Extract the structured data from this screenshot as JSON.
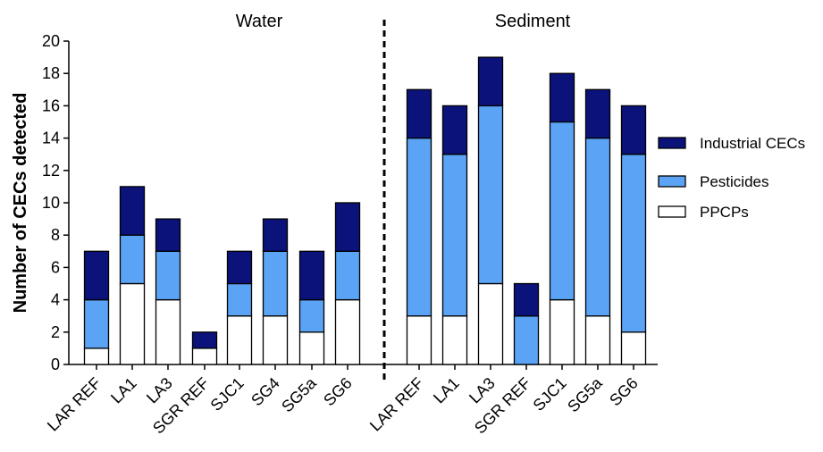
{
  "chart_data": {
    "type": "bar",
    "stacked": true,
    "ylabel": "Number of CECs detected",
    "ylim": [
      0,
      20
    ],
    "yticks": [
      0,
      2,
      4,
      6,
      8,
      10,
      12,
      14,
      16,
      18,
      20
    ],
    "grid": false,
    "legend_position": "right",
    "panels": [
      "Water",
      "Sediment"
    ],
    "categories": [
      "LAR REF",
      "LA1",
      "LA3",
      "SGR REF",
      "SJC1",
      "SG4",
      "SG5a",
      "SG6",
      "LAR REF",
      "LA1",
      "LA3",
      "SGR REF",
      "SJC1",
      "SG5a",
      "SG6"
    ],
    "panel_of_category": [
      "Water",
      "Water",
      "Water",
      "Water",
      "Water",
      "Water",
      "Water",
      "Water",
      "Sediment",
      "Sediment",
      "Sediment",
      "Sediment",
      "Sediment",
      "Sediment",
      "Sediment"
    ],
    "series": [
      {
        "name": "PPCPs",
        "color": "#ffffff",
        "values": [
          1,
          5,
          4,
          1,
          3,
          3,
          2,
          4,
          3,
          3,
          5,
          0,
          4,
          3,
          2
        ]
      },
      {
        "name": "Pesticides",
        "color": "#5aa3f5",
        "values": [
          3,
          3,
          3,
          0,
          2,
          4,
          2,
          3,
          11,
          10,
          11,
          3,
          11,
          11,
          11
        ]
      },
      {
        "name": "Industrial CECs",
        "color": "#0b127a",
        "values": [
          3,
          3,
          2,
          1,
          2,
          2,
          3,
          3,
          3,
          3,
          3,
          2,
          3,
          3,
          3
        ]
      }
    ],
    "legend_order": [
      "Industrial CECs",
      "Pesticides",
      "PPCPs"
    ]
  }
}
